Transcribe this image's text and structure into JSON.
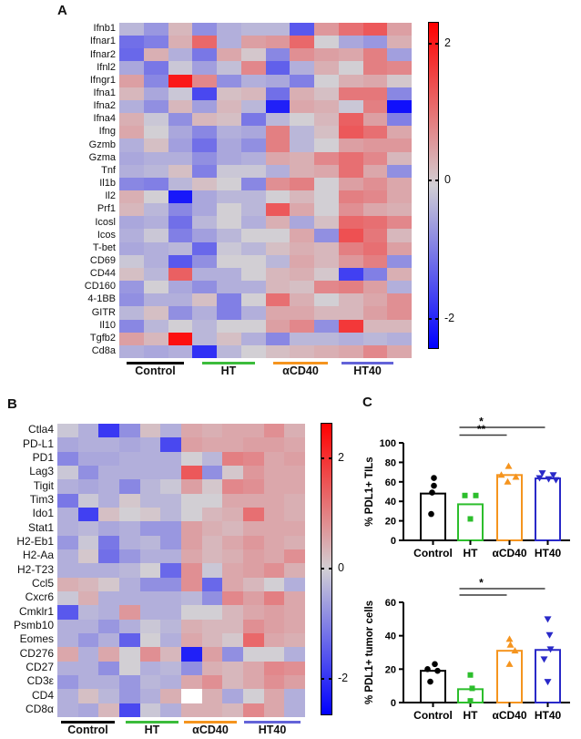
{
  "figure": {
    "panel_labels": {
      "a": "A",
      "b": "B",
      "c": "C"
    }
  },
  "groups": [
    {
      "label": "Control",
      "color": "#000000",
      "underline_color": "#000000",
      "marker": "circle"
    },
    {
      "label": "HT",
      "color": "#2cbe2c",
      "underline_color": "#3bbc3b",
      "marker": "square"
    },
    {
      "label": "αCD40",
      "color": "#f5941e",
      "underline_color": "#f5941e",
      "marker": "triangle-up"
    },
    {
      "label": "HT40",
      "color": "#2929c8",
      "underline_color": "#6363d8",
      "marker": "triangle-down"
    }
  ],
  "colormap": {
    "negative": "#0000ff",
    "mid": "#d2cfd4",
    "positive": "#ff0000",
    "vmax": 2.6
  },
  "chart_data": [
    {
      "type": "heatmap",
      "panel": "A",
      "column_groups": [
        {
          "label": "Control",
          "n": 3
        },
        {
          "label": "HT",
          "n": 3
        },
        {
          "label": "αCD40",
          "n": 3
        },
        {
          "label": "HT40",
          "n": 3
        }
      ],
      "rows": [
        "Ifnb1",
        "Ifnar1",
        "Ifnar2",
        "Ifnl2",
        "Ifngr1",
        "Ifna1",
        "Ifna2",
        "Ifna4",
        "Ifng",
        "Gzmb",
        "Gzma",
        "Tnf",
        "Il1b",
        "Il2",
        "Prf1",
        "Icosl",
        "Icos",
        "T-bet",
        "CD69",
        "CD44",
        "CD160",
        "4-1BB",
        "GITR",
        "Il10",
        "Tgfb2",
        "Cd8a"
      ],
      "values": [
        [
          -0.3,
          -0.7,
          0.3,
          -0.8,
          -0.4,
          -0.3,
          -0.3,
          -1.5,
          0.7,
          1.2,
          1.5,
          0.6
        ],
        [
          -1.2,
          -1.0,
          0.4,
          1.3,
          -0.4,
          0.6,
          0.7,
          1.3,
          0.0,
          -0.5,
          -0.7,
          0.4
        ],
        [
          -1.3,
          0.4,
          -0.4,
          -1.1,
          0.5,
          0.1,
          -0.9,
          0.8,
          0.6,
          0.5,
          1.0,
          -0.6
        ],
        [
          -0.5,
          -1.1,
          -0.1,
          -0.6,
          -0.2,
          0.9,
          -1.4,
          -0.4,
          0.4,
          0.0,
          1.0,
          0.9
        ],
        [
          0.6,
          -0.9,
          2.3,
          0.9,
          -0.8,
          -0.4,
          -0.5,
          -1.0,
          0.0,
          0.4,
          0.5,
          0.1
        ],
        [
          0.3,
          -0.5,
          -0.1,
          -1.7,
          0.2,
          0.3,
          -1.2,
          0.4,
          0.2,
          1.1,
          1.1,
          -0.9
        ],
        [
          -0.4,
          -0.8,
          0.3,
          -0.6,
          0.3,
          -0.3,
          -2.2,
          0.5,
          0.4,
          -0.1,
          1.0,
          -2.4
        ],
        [
          0.4,
          -0.1,
          -0.8,
          0.3,
          0.2,
          -1.1,
          -0.3,
          0.0,
          0.3,
          1.4,
          0.6,
          -1.0
        ],
        [
          0.5,
          0.0,
          -0.5,
          -0.9,
          -0.4,
          -0.5,
          1.0,
          -0.3,
          0.2,
          1.5,
          1.2,
          0.5
        ],
        [
          -0.4,
          0.2,
          -0.6,
          -1.2,
          -0.5,
          -0.8,
          1.0,
          -0.3,
          0.0,
          0.6,
          0.7,
          0.7
        ],
        [
          -0.5,
          -0.4,
          -0.4,
          -0.8,
          -0.5,
          -0.4,
          0.5,
          0.4,
          0.9,
          1.2,
          0.9,
          0.3
        ],
        [
          -0.4,
          -0.3,
          0.2,
          -1.0,
          -0.1,
          -0.1,
          -0.4,
          0.4,
          0.5,
          1.2,
          0.5,
          -0.8
        ],
        [
          -0.9,
          -1.0,
          -0.3,
          0.2,
          0.0,
          -0.9,
          0.8,
          1.0,
          0.0,
          0.6,
          0.8,
          0.5
        ],
        [
          0.4,
          0.0,
          -2.3,
          -0.5,
          -0.3,
          -0.3,
          0.0,
          0.3,
          0.0,
          1.0,
          0.9,
          0.5
        ],
        [
          0.3,
          -0.3,
          -0.9,
          -0.5,
          0.0,
          -0.3,
          1.5,
          0.5,
          0.0,
          0.8,
          0.5,
          0.4
        ],
        [
          -0.5,
          -0.4,
          -1.2,
          -0.3,
          0.0,
          -0.4,
          0.4,
          -0.5,
          0.2,
          1.3,
          1.2,
          0.9
        ],
        [
          -0.4,
          -0.1,
          -1.0,
          -0.6,
          -0.3,
          0.0,
          0.0,
          0.5,
          -0.8,
          1.6,
          1.1,
          0.3
        ],
        [
          -0.5,
          -0.4,
          -0.3,
          -1.3,
          -0.1,
          -0.3,
          0.2,
          0.4,
          0.3,
          1.0,
          1.2,
          0.6
        ],
        [
          -0.1,
          -0.4,
          -1.5,
          -0.8,
          0.0,
          0.0,
          -0.3,
          0.5,
          0.3,
          0.7,
          1.0,
          -0.8
        ],
        [
          0.2,
          -0.3,
          1.4,
          -0.4,
          -0.4,
          0.0,
          0.3,
          0.4,
          0.1,
          -1.8,
          -1.0,
          0.4
        ],
        [
          -0.7,
          0.0,
          -0.5,
          -0.8,
          -0.4,
          -0.4,
          0.3,
          0.2,
          0.9,
          1.0,
          0.6,
          -0.4
        ],
        [
          -0.8,
          -0.4,
          -0.4,
          0.2,
          -1.0,
          0.0,
          1.2,
          0.4,
          0.0,
          0.3,
          0.5,
          0.8
        ],
        [
          -0.3,
          0.2,
          -0.8,
          -0.4,
          -1.0,
          -0.4,
          0.5,
          0.5,
          0.3,
          0.3,
          0.6,
          0.8
        ],
        [
          -0.9,
          -0.3,
          0.0,
          -0.3,
          0.0,
          0.0,
          0.6,
          0.9,
          -0.8,
          1.9,
          0.3,
          0.3
        ],
        [
          0.6,
          0.3,
          2.4,
          -0.3,
          0.2,
          -0.4,
          -0.9,
          -0.3,
          -0.3,
          -0.4,
          -0.3,
          -0.4
        ],
        [
          -0.4,
          -0.5,
          -0.4,
          -2.0,
          -0.3,
          0.0,
          0.2,
          0.3,
          0.4,
          0.5,
          0.9,
          0.5
        ]
      ],
      "scale": {
        "min": -2.6,
        "max": 2.6,
        "tick_labels": [
          "2",
          "0",
          "-2"
        ]
      }
    },
    {
      "type": "heatmap",
      "panel": "B",
      "column_groups": [
        {
          "label": "Control",
          "n": 3
        },
        {
          "label": "HT",
          "n": 3
        },
        {
          "label": "αCD40",
          "n": 3
        },
        {
          "label": "HT40",
          "n": 3
        }
      ],
      "rows": [
        "Ctla4",
        "PD-L1",
        "PD1",
        "Lag3",
        "Tigit",
        "Tim3",
        "Ido1",
        "Stat1",
        "H2-Eb1",
        "H2-Aa",
        "H2-T23",
        "Ccl5",
        "Cxcr6",
        "Cmklr1",
        "Psmb10",
        "Eomes",
        "CD276",
        "CD27",
        "CD3ε",
        "CD4",
        "CD8α"
      ],
      "values": [
        [
          -0.1,
          -0.4,
          -1.9,
          -0.8,
          0.2,
          -0.4,
          0.5,
          0.4,
          0.5,
          0.5,
          0.8,
          0.4
        ],
        [
          -0.5,
          -0.4,
          -0.4,
          -0.5,
          -0.4,
          -1.7,
          0.6,
          0.5,
          0.5,
          0.6,
          0.6,
          0.5
        ],
        [
          -0.9,
          -0.5,
          -0.5,
          -0.4,
          -0.4,
          -0.4,
          0.0,
          -0.3,
          1.0,
          0.9,
          0.5,
          0.6
        ],
        [
          -0.1,
          -0.8,
          -0.4,
          -0.4,
          -0.4,
          -0.4,
          1.5,
          -0.8,
          0.1,
          0.7,
          0.5,
          0.5
        ],
        [
          -0.4,
          -0.5,
          -0.4,
          -0.9,
          -0.3,
          -0.1,
          0.6,
          0.1,
          0.9,
          0.8,
          0.5,
          0.5
        ],
        [
          -1.1,
          -0.1,
          -0.4,
          0.1,
          -0.3,
          -0.3,
          0.0,
          0.0,
          0.5,
          0.5,
          0.5,
          0.4
        ],
        [
          -0.4,
          -1.8,
          0.2,
          0.0,
          0.1,
          -0.3,
          0.0,
          0.3,
          0.4,
          1.2,
          0.5,
          0.4
        ],
        [
          -0.4,
          -0.3,
          -0.5,
          -0.4,
          -0.7,
          -0.7,
          0.6,
          0.4,
          0.3,
          0.5,
          0.5,
          0.5
        ],
        [
          -0.7,
          -0.1,
          -1.1,
          -0.4,
          -0.3,
          -0.7,
          0.6,
          0.3,
          0.5,
          0.7,
          0.5,
          0.4
        ],
        [
          -0.4,
          0.1,
          -1.2,
          -0.7,
          -0.4,
          -0.4,
          0.5,
          0.3,
          0.4,
          0.6,
          0.5,
          0.8
        ],
        [
          -0.4,
          -0.4,
          -0.4,
          -0.3,
          0.0,
          -1.3,
          0.8,
          -0.1,
          0.5,
          0.6,
          0.8,
          0.4
        ],
        [
          0.4,
          0.3,
          0.1,
          -0.4,
          -0.8,
          -0.8,
          0.8,
          -1.3,
          0.5,
          0.3,
          0.0,
          -0.4
        ],
        [
          -0.1,
          0.4,
          -0.4,
          -0.4,
          -0.4,
          -0.4,
          -0.3,
          -0.8,
          0.9,
          0.6,
          1.0,
          0.5
        ],
        [
          -1.5,
          -0.3,
          -0.4,
          0.7,
          -0.4,
          -0.4,
          0.0,
          0.0,
          0.3,
          0.5,
          0.6,
          0.5
        ],
        [
          -0.4,
          -0.4,
          -0.7,
          -0.4,
          -0.1,
          -0.3,
          0.4,
          0.3,
          0.3,
          0.8,
          0.6,
          0.5
        ],
        [
          -0.4,
          -0.7,
          -0.4,
          -1.4,
          0.0,
          -0.4,
          0.5,
          0.3,
          0.1,
          1.3,
          0.5,
          0.4
        ],
        [
          0.5,
          -0.4,
          0.5,
          0.0,
          0.8,
          0.3,
          -2.2,
          0.6,
          -0.8,
          0.0,
          0.0,
          -0.4
        ],
        [
          -0.4,
          -0.4,
          -0.8,
          0.0,
          -0.4,
          -0.3,
          -0.8,
          0.4,
          0.3,
          0.5,
          0.9,
          0.8
        ],
        [
          -0.7,
          -0.4,
          -0.4,
          -0.7,
          -0.3,
          -0.4,
          0.5,
          0.8,
          0.3,
          0.5,
          0.8,
          0.6
        ],
        [
          -0.4,
          0.2,
          -0.3,
          -0.7,
          -0.4,
          0.4,
          null,
          0.4,
          -0.5,
          0.0,
          0.5,
          -0.4
        ],
        [
          -0.4,
          -0.5,
          0.3,
          -1.7,
          -0.1,
          -0.4,
          0.4,
          0.4,
          0.3,
          0.9,
          0.5,
          -0.4
        ]
      ],
      "scale": {
        "min": -2.6,
        "max": 2.6,
        "tick_labels": [
          "2",
          "0",
          "-2"
        ]
      }
    },
    {
      "type": "bar",
      "panel": "C",
      "ylabel": "% PDL1+ TILs",
      "ylim": [
        0,
        100
      ],
      "yticks": [
        0,
        20,
        40,
        60,
        80,
        100
      ],
      "categories": [
        "Control",
        "HT",
        "αCD40",
        "HT40"
      ],
      "bar_values": [
        48,
        37,
        67,
        63.5
      ],
      "points": [
        [
          64,
          56,
          49,
          27
        ],
        [
          46,
          46,
          22
        ],
        [
          76,
          67,
          65,
          60
        ],
        [
          69,
          67,
          64,
          63,
          62
        ]
      ],
      "significance": [
        {
          "from": "HT",
          "to": "HT40",
          "label": "*"
        },
        {
          "from": "HT",
          "to": "αCD40",
          "label": "**"
        }
      ]
    },
    {
      "type": "bar",
      "panel": "C",
      "ylabel": "% PDL1+ tumor cells",
      "ylim": [
        0,
        60
      ],
      "yticks": [
        0,
        20,
        40,
        60
      ],
      "categories": [
        "Control",
        "HT",
        "αCD40",
        "HT40"
      ],
      "bar_values": [
        19,
        8,
        31,
        31.5
      ],
      "points": [
        [
          23,
          20,
          19,
          12.5
        ],
        [
          16.5,
          8.5,
          1
        ],
        [
          38,
          34.5,
          31,
          23
        ],
        [
          50,
          40.5,
          32,
          26,
          12.5
        ]
      ],
      "significance": [
        {
          "from": "HT",
          "to": "HT40",
          "label": "*"
        },
        {
          "from": "HT",
          "to": "αCD40",
          "label": ""
        }
      ]
    }
  ]
}
